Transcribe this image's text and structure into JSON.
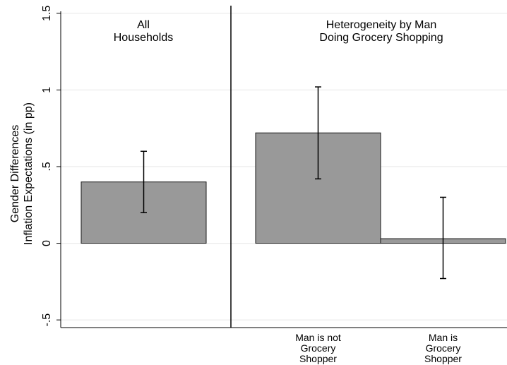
{
  "chart_data": {
    "type": "bar",
    "ylabel_lines": [
      "Gender Differences",
      "Inflation Expectations (in pp)"
    ],
    "ylim": [
      -0.55,
      1.55
    ],
    "y_ticks": [
      -0.5,
      0,
      0.5,
      1,
      1.5
    ],
    "y_tick_labels": [
      "-.5",
      "0",
      ".5",
      "1",
      "1.5"
    ],
    "grid": true,
    "bar_color": "#999999",
    "panels": [
      {
        "title_lines": [
          "All",
          "Households"
        ],
        "bars": [
          {
            "value": 0.4,
            "ci": [
              0.2,
              0.6
            ],
            "label_lines": []
          }
        ]
      },
      {
        "title_lines": [
          "Heterogeneity by Man",
          "Doing Grocery Shopping"
        ],
        "bars": [
          {
            "value": 0.72,
            "ci": [
              0.42,
              1.02
            ],
            "label_lines": [
              "Man is not",
              "Grocery",
              "Shopper"
            ]
          },
          {
            "value": 0.03,
            "ci": [
              -0.23,
              0.3
            ],
            "label_lines": [
              "Man is",
              "Grocery",
              "Shopper"
            ]
          }
        ]
      }
    ]
  }
}
